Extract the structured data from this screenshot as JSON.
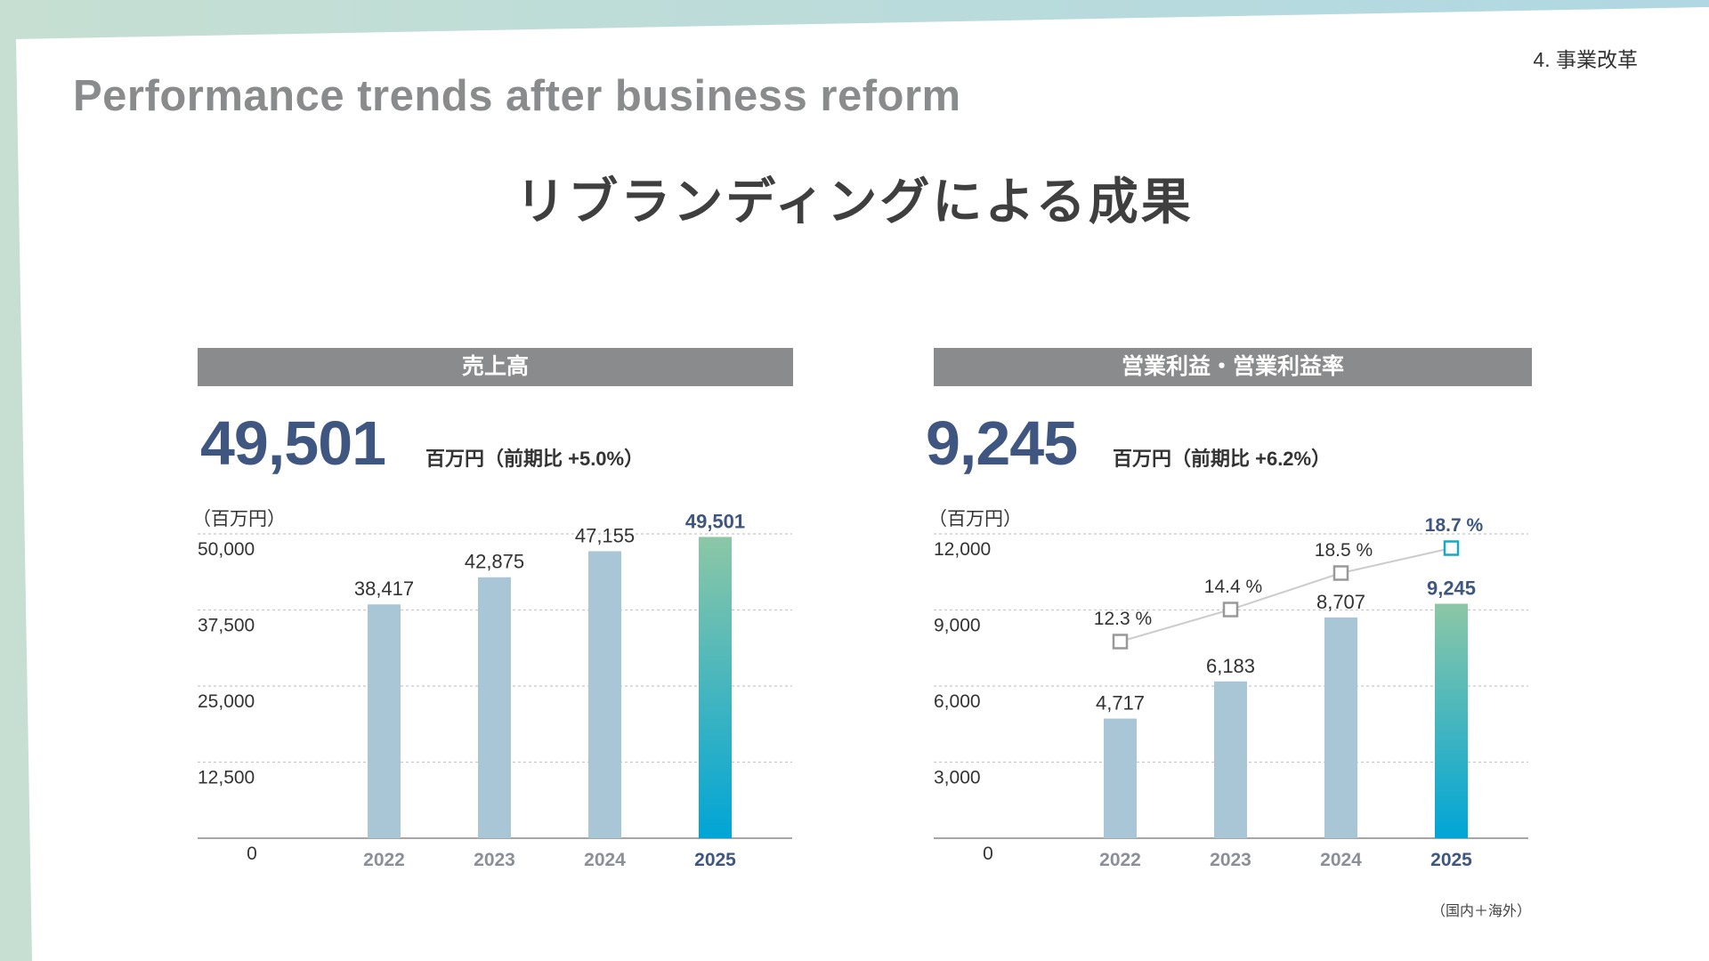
{
  "header": {
    "section_label": "4. 事業改革",
    "title": "Performance trends after business reform",
    "subtitle": "リブランディングによる成果"
  },
  "footnote": "（国内＋海外）",
  "colors": {
    "header_bar": "#8a8b8d",
    "bar": "#a8c6d6",
    "highlight_top": "#8cc7a6",
    "highlight_bottom": "#00a5d6",
    "kpi": "#3e5680",
    "marker": "#999999",
    "marker_highlight": "#16a9c4"
  },
  "sales": {
    "header": "売上高",
    "kpi_value": "49,501",
    "kpi_sub": "百万円（前期比 +5.0%）",
    "unit": "（百万円）"
  },
  "profit": {
    "header": "営業利益・営業利益率",
    "kpi_value": "9,245",
    "kpi_sub": "百万円（前期比 +6.2%）",
    "unit": "（百万円）"
  },
  "chart_data": [
    {
      "id": "sales",
      "type": "bar",
      "title": "売上高",
      "ylabel": "（百万円）",
      "categories": [
        "2022",
        "2023",
        "2024",
        "2025"
      ],
      "values": [
        38417,
        42875,
        47155,
        49501
      ],
      "value_labels": [
        "38,417",
        "42,875",
        "47,155",
        "49,501"
      ],
      "ylim": [
        0,
        50000
      ],
      "yticks": [
        0,
        12500,
        25000,
        37500,
        50000
      ],
      "ytick_labels": [
        "0",
        "12,500",
        "25,000",
        "37,500",
        "50,000"
      ],
      "highlight_index": 3,
      "grid": true
    },
    {
      "id": "profit",
      "type": "bar+line",
      "title": "営業利益・営業利益率",
      "ylabel": "（百万円）",
      "categories": [
        "2022",
        "2023",
        "2024",
        "2025"
      ],
      "values": [
        4717,
        6183,
        8707,
        9245
      ],
      "value_labels": [
        "4,717",
        "6,183",
        "8,707",
        "9,245"
      ],
      "ylim": [
        0,
        12000
      ],
      "yticks": [
        0,
        3000,
        6000,
        9000,
        12000
      ],
      "ytick_labels": [
        "0",
        "3,000",
        "6,000",
        "9,000",
        "12,000"
      ],
      "highlight_index": 3,
      "grid": true,
      "line_series": {
        "name": "営業利益率",
        "values": [
          12.3,
          14.4,
          18.5,
          18.7
        ],
        "labels": [
          "12.3 %",
          "14.4 %",
          "18.5 %",
          "18.7 %"
        ]
      }
    }
  ]
}
